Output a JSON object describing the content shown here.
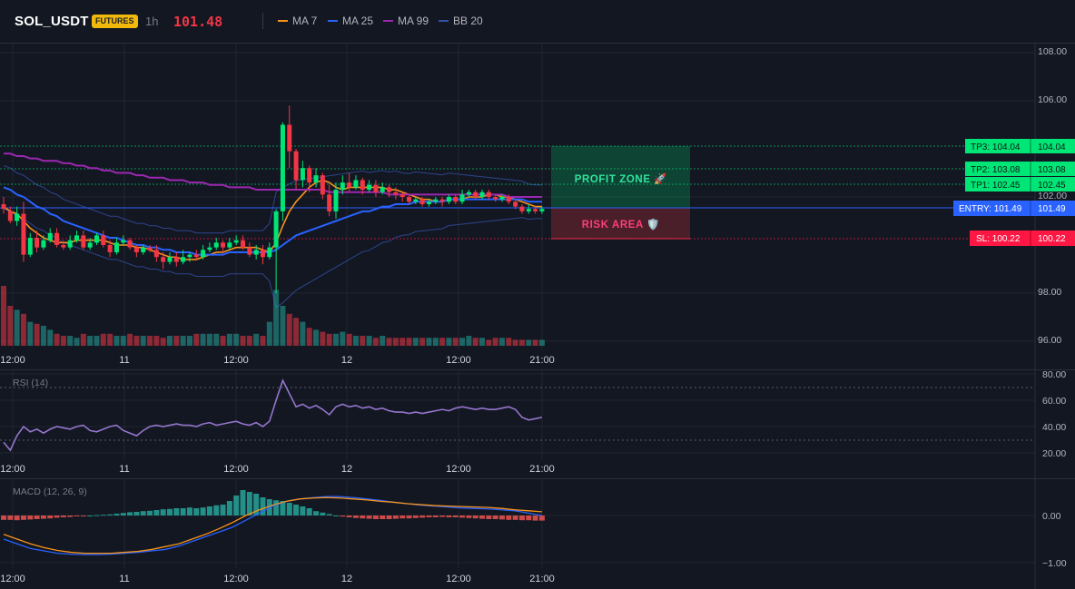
{
  "header": {
    "symbol": "SOL_USDT",
    "badge": "FUTURES",
    "timeframe": "1h",
    "last_price": "101.48",
    "indicators": [
      {
        "label": "MA 7",
        "color": "#f7931a"
      },
      {
        "label": "MA 25",
        "color": "#2962ff"
      },
      {
        "label": "MA 99",
        "color": "#9c27b0"
      },
      {
        "label": "BB 20",
        "color": "#3550a8"
      }
    ]
  },
  "colors": {
    "background": "#131722",
    "up": "#26a69a",
    "up_bright": "#00e676",
    "down": "#f23645",
    "tp": "#00e676",
    "entry": "#2962ff",
    "sl": "#ff1744"
  },
  "x_axis_labels": [
    "12:00",
    "11",
    "12:00",
    "12",
    "12:00",
    "21:00"
  ],
  "price_pane": {
    "y_labels": [
      "108.00",
      "106.00",
      "102.00",
      "98.00",
      "96.00"
    ],
    "profit_zone_label": "PROFIT ZONE 🚀",
    "risk_area_label": "RISK AREA 🛡️",
    "levels": [
      {
        "name": "tp3",
        "tag": "TP3: 104.04",
        "value": "104.04"
      },
      {
        "name": "tp2",
        "tag": "TP2: 103.08",
        "value": "103.08"
      },
      {
        "name": "tp1",
        "tag": "TP1: 102.45",
        "value": "102.45"
      },
      {
        "name": "entry",
        "tag": "ENTRY: 101.49",
        "value": "101.49"
      },
      {
        "name": "sl",
        "tag": "SL: 100.22",
        "value": "100.22"
      }
    ]
  },
  "rsi_pane": {
    "title": "RSI (14)",
    "y_labels": [
      "80.00",
      "60.00",
      "40.00",
      "20.00"
    ]
  },
  "macd_pane": {
    "title": "MACD (12, 26, 9)",
    "y_labels": [
      "0.00",
      "−1.00"
    ]
  },
  "chart_data": {
    "type": "candlestick",
    "price_axis": {
      "min": 96,
      "max": 108
    },
    "candles": [
      [
        101.7,
        101.5,
        102.0,
        101.3
      ],
      [
        101.4,
        101.0,
        101.6,
        100.9
      ],
      [
        101.0,
        101.3,
        101.6,
        100.8
      ],
      [
        101.3,
        99.6,
        101.8,
        99.3
      ],
      [
        99.6,
        100.3,
        100.5,
        99.5
      ],
      [
        100.3,
        99.9,
        100.6,
        99.7
      ],
      [
        99.9,
        100.2,
        100.4,
        99.8
      ],
      [
        100.2,
        100.5,
        100.7,
        100.1
      ],
      [
        100.5,
        100.0,
        100.7,
        99.9
      ],
      [
        100.0,
        99.9,
        100.2,
        99.8
      ],
      [
        99.9,
        100.2,
        100.4,
        99.8
      ],
      [
        100.2,
        100.4,
        100.6,
        100.1
      ],
      [
        100.4,
        99.9,
        100.6,
        99.8
      ],
      [
        99.9,
        100.1,
        100.3,
        99.8
      ],
      [
        100.1,
        100.4,
        100.5,
        100.0
      ],
      [
        100.4,
        100.0,
        100.6,
        99.9
      ],
      [
        100.0,
        99.7,
        100.2,
        99.5
      ],
      [
        99.7,
        100.1,
        100.3,
        99.6
      ],
      [
        100.1,
        100.2,
        100.4,
        100.0
      ],
      [
        100.2,
        99.9,
        100.3,
        99.8
      ],
      [
        99.9,
        99.7,
        100.0,
        99.5
      ],
      [
        99.7,
        99.9,
        100.0,
        99.6
      ],
      [
        99.9,
        99.8,
        100.0,
        99.7
      ],
      [
        99.8,
        99.5,
        100.0,
        99.3
      ],
      [
        99.5,
        99.3,
        99.7,
        99.0
      ],
      [
        99.3,
        99.5,
        99.7,
        99.2
      ],
      [
        99.5,
        99.3,
        99.7,
        99.1
      ],
      [
        99.3,
        99.5,
        99.8,
        99.2
      ],
      [
        99.5,
        99.6,
        99.7,
        99.3
      ],
      [
        99.6,
        99.5,
        99.8,
        99.4
      ],
      [
        99.5,
        99.8,
        100.0,
        99.4
      ],
      [
        99.8,
        99.9,
        100.1,
        99.7
      ],
      [
        99.9,
        100.1,
        100.3,
        99.8
      ],
      [
        100.1,
        99.9,
        100.2,
        99.7
      ],
      [
        99.9,
        100.1,
        100.3,
        99.8
      ],
      [
        100.1,
        100.2,
        100.4,
        100.0
      ],
      [
        100.2,
        99.9,
        100.4,
        99.8
      ],
      [
        99.9,
        99.6,
        100.1,
        99.5
      ],
      [
        99.6,
        99.8,
        100.0,
        99.4
      ],
      [
        99.8,
        99.5,
        100.0,
        99.2
      ],
      [
        99.5,
        99.9,
        100.1,
        99.4
      ],
      [
        99.9,
        101.4,
        101.5,
        98.0
      ],
      [
        101.4,
        105.0,
        105.1,
        101.0
      ],
      [
        105.0,
        103.9,
        105.8,
        103.2
      ],
      [
        103.9,
        102.7,
        104.0,
        102.3
      ],
      [
        102.7,
        103.2,
        103.5,
        102.4
      ],
      [
        103.2,
        102.6,
        103.3,
        102.2
      ],
      [
        102.6,
        102.9,
        103.2,
        102.4
      ],
      [
        102.9,
        102.1,
        103.0,
        101.9
      ],
      [
        102.1,
        101.4,
        102.5,
        101.2
      ],
      [
        101.4,
        102.3,
        102.6,
        101.1
      ],
      [
        102.3,
        102.6,
        102.9,
        102.1
      ],
      [
        102.6,
        102.4,
        103.0,
        102.2
      ],
      [
        102.4,
        102.7,
        102.9,
        102.3
      ],
      [
        102.7,
        102.3,
        102.8,
        102.1
      ],
      [
        102.3,
        102.5,
        102.7,
        102.2
      ],
      [
        102.5,
        102.2,
        102.7,
        102.0
      ],
      [
        102.2,
        102.4,
        102.6,
        102.1
      ],
      [
        102.4,
        102.2,
        102.5,
        102.0
      ],
      [
        102.2,
        102.1,
        102.4,
        101.9
      ],
      [
        102.1,
        102.0,
        102.2,
        101.8
      ],
      [
        102.0,
        101.8,
        102.1,
        101.7
      ],
      [
        101.8,
        101.9,
        102.0,
        101.7
      ],
      [
        101.9,
        101.7,
        102.0,
        101.6
      ],
      [
        101.7,
        101.8,
        101.9,
        101.6
      ],
      [
        101.8,
        101.9,
        102.0,
        101.7
      ],
      [
        101.9,
        101.8,
        102.0,
        101.6
      ],
      [
        101.8,
        102.0,
        102.1,
        101.7
      ],
      [
        102.0,
        101.8,
        102.1,
        101.7
      ],
      [
        101.8,
        102.1,
        102.3,
        101.7
      ],
      [
        102.1,
        102.2,
        102.3,
        102.0
      ],
      [
        102.2,
        102.0,
        102.3,
        101.9
      ],
      [
        102.0,
        102.2,
        102.3,
        101.9
      ],
      [
        102.2,
        102.0,
        102.3,
        101.9
      ],
      [
        102.0,
        101.9,
        102.1,
        101.8
      ],
      [
        101.9,
        102.0,
        102.1,
        101.8
      ],
      [
        102.0,
        101.8,
        102.1,
        101.7
      ],
      [
        101.8,
        101.6,
        101.9,
        101.5
      ],
      [
        101.6,
        101.4,
        101.7,
        101.3
      ],
      [
        101.4,
        101.5,
        101.7,
        101.3
      ],
      [
        101.5,
        101.4,
        101.6,
        101.3
      ],
      [
        101.4,
        101.5,
        101.6,
        101.3
      ]
    ],
    "series": [
      {
        "name": "MA 7",
        "values": [
          101.6,
          101.4,
          101.3,
          101.0,
          100.7,
          100.5,
          100.3,
          100.2,
          100.1,
          100.1,
          100.1,
          100.2,
          100.2,
          100.2,
          100.2,
          100.2,
          100.1,
          100.0,
          100.0,
          100.0,
          99.9,
          99.9,
          99.8,
          99.7,
          99.6,
          99.5,
          99.5,
          99.4,
          99.4,
          99.4,
          99.5,
          99.6,
          99.7,
          99.7,
          99.8,
          99.9,
          99.9,
          99.9,
          99.9,
          99.8,
          99.7,
          100.1,
          100.8,
          101.4,
          101.8,
          102.1,
          102.4,
          102.6,
          102.7,
          102.6,
          102.4,
          102.3,
          102.4,
          102.4,
          102.4,
          102.4,
          102.4,
          102.4,
          102.3,
          102.3,
          102.2,
          102.1,
          102.0,
          101.9,
          101.9,
          101.8,
          101.8,
          101.9,
          101.9,
          101.9,
          102.0,
          102.0,
          102.0,
          102.1,
          102.1,
          102.0,
          102.0,
          101.9,
          101.8,
          101.7,
          101.6,
          101.6
        ]
      },
      {
        "name": "MA 25",
        "values": [
          102.4,
          102.3,
          102.1,
          102.0,
          101.8,
          101.6,
          101.5,
          101.3,
          101.2,
          101.0,
          100.9,
          100.8,
          100.7,
          100.6,
          100.5,
          100.4,
          100.3,
          100.3,
          100.2,
          100.1,
          100.0,
          100.0,
          99.9,
          99.9,
          99.8,
          99.8,
          99.7,
          99.7,
          99.7,
          99.6,
          99.6,
          99.6,
          99.6,
          99.6,
          99.7,
          99.7,
          99.7,
          99.7,
          99.7,
          99.7,
          99.7,
          99.8,
          100.0,
          100.2,
          100.4,
          100.5,
          100.6,
          100.7,
          100.8,
          100.9,
          101.0,
          101.1,
          101.2,
          101.3,
          101.4,
          101.4,
          101.5,
          101.6,
          101.6,
          101.7,
          101.7,
          101.7,
          101.8,
          101.8,
          101.8,
          101.8,
          101.8,
          101.9,
          101.9,
          101.9,
          101.9,
          101.9,
          101.9,
          101.9,
          101.9,
          101.9,
          101.9,
          101.9,
          101.9,
          101.8,
          101.8,
          101.8
        ]
      },
      {
        "name": "MA 99",
        "values": [
          103.8,
          103.8,
          103.7,
          103.7,
          103.6,
          103.6,
          103.5,
          103.5,
          103.5,
          103.4,
          103.4,
          103.3,
          103.3,
          103.2,
          103.2,
          103.1,
          103.1,
          103.0,
          103.0,
          103.0,
          102.9,
          102.9,
          102.8,
          102.8,
          102.8,
          102.7,
          102.7,
          102.7,
          102.6,
          102.6,
          102.6,
          102.5,
          102.5,
          102.5,
          102.4,
          102.4,
          102.4,
          102.4,
          102.3,
          102.3,
          102.3,
          102.3,
          102.3,
          102.3,
          102.3,
          102.3,
          102.3,
          102.3,
          102.3,
          102.2,
          102.2,
          102.2,
          102.2,
          102.2,
          102.2,
          102.2,
          102.2,
          102.2,
          102.1,
          102.1,
          102.1,
          102.1,
          102.1,
          102.1,
          102.1,
          102.1,
          102.1,
          102.1,
          102.1,
          102.1,
          102.1,
          102.1,
          102.1,
          102.1,
          102.1,
          102.1,
          102.0,
          102.0,
          102.0,
          102.0,
          102.0,
          102.0
        ]
      }
    ],
    "volume": [
      3,
      2,
      1.8,
      1.6,
      1.2,
      1.1,
      1.0,
      0.8,
      0.6,
      0.5,
      0.5,
      0.4,
      0.6,
      0.5,
      0.5,
      0.6,
      0.6,
      0.5,
      0.5,
      0.6,
      0.5,
      0.5,
      0.5,
      0.5,
      0.4,
      0.5,
      0.5,
      0.5,
      0.5,
      0.6,
      0.6,
      0.6,
      0.6,
      0.5,
      0.6,
      0.6,
      0.5,
      0.5,
      0.6,
      0.5,
      1.2,
      2.8,
      2.0,
      1.6,
      1.4,
      1.2,
      0.9,
      0.8,
      0.7,
      0.6,
      0.6,
      0.7,
      0.6,
      0.5,
      0.5,
      0.5,
      0.4,
      0.5,
      0.4,
      0.4,
      0.4,
      0.4,
      0.4,
      0.4,
      0.4,
      0.4,
      0.4,
      0.4,
      0.4,
      0.4,
      0.5,
      0.4,
      0.4,
      0.3,
      0.4,
      0.4,
      0.4,
      0.3,
      0.3,
      0.3,
      0.3,
      0.3
    ],
    "rsi": [
      28,
      22,
      33,
      40,
      36,
      38,
      35,
      38,
      40,
      39,
      38,
      40,
      41,
      37,
      36,
      38,
      40,
      41,
      37,
      35,
      33,
      37,
      40,
      41,
      40,
      41,
      42,
      41,
      41,
      40,
      42,
      43,
      41,
      42,
      43,
      44,
      42,
      41,
      43,
      40,
      44,
      60,
      75,
      65,
      55,
      57,
      54,
      56,
      53,
      49,
      55,
      57,
      55,
      56,
      54,
      55,
      53,
      54,
      52,
      51,
      51,
      50,
      51,
      50,
      51,
      52,
      53,
      52,
      54,
      55,
      54,
      53,
      54,
      53,
      53,
      54,
      55,
      53,
      47,
      45,
      46,
      47
    ],
    "macd_hist": [
      -0.12,
      -0.12,
      -0.13,
      -0.12,
      -0.11,
      -0.1,
      -0.09,
      -0.08,
      -0.06,
      -0.05,
      -0.04,
      -0.02,
      -0.01,
      0.0,
      0.01,
      0.02,
      0.03,
      0.05,
      0.07,
      0.09,
      0.1,
      0.12,
      0.13,
      0.15,
      0.17,
      0.18,
      0.2,
      0.2,
      0.22,
      0.2,
      0.22,
      0.25,
      0.28,
      0.3,
      0.4,
      0.55,
      0.7,
      0.65,
      0.6,
      0.5,
      0.45,
      0.42,
      0.4,
      0.35,
      0.3,
      0.25,
      0.2,
      0.12,
      0.08,
      0.04,
      0.0,
      -0.03,
      -0.05,
      -0.07,
      -0.08,
      -0.09,
      -0.1,
      -0.1,
      -0.1,
      -0.09,
      -0.08,
      -0.08,
      -0.07,
      -0.06,
      -0.05,
      -0.05,
      -0.04,
      -0.05,
      -0.05,
      -0.06,
      -0.07,
      -0.08,
      -0.09,
      -0.1,
      -0.1,
      -0.11,
      -0.12,
      -0.12,
      -0.13,
      -0.13,
      -0.14,
      -0.14
    ],
    "macd_line": [
      -0.5,
      -0.6,
      -0.7,
      -0.75,
      -0.8,
      -0.82,
      -0.83,
      -0.83,
      -0.82,
      -0.8,
      -0.78,
      -0.75,
      -0.72,
      -0.65,
      -0.55,
      -0.45,
      -0.35,
      -0.25,
      -0.1,
      0.05,
      0.2,
      0.3,
      0.35,
      0.38,
      0.4,
      0.4,
      0.38,
      0.35,
      0.32,
      0.28,
      0.25,
      0.22,
      0.2,
      0.18,
      0.16,
      0.15,
      0.14,
      0.12,
      0.1,
      0.05,
      0.0
    ],
    "macd_signal": [
      -0.4,
      -0.5,
      -0.6,
      -0.68,
      -0.74,
      -0.78,
      -0.8,
      -0.8,
      -0.8,
      -0.78,
      -0.76,
      -0.72,
      -0.66,
      -0.6,
      -0.5,
      -0.4,
      -0.28,
      -0.15,
      0.0,
      0.12,
      0.22,
      0.3,
      0.35,
      0.37,
      0.38,
      0.37,
      0.35,
      0.33,
      0.3,
      0.28,
      0.25,
      0.23,
      0.21,
      0.2,
      0.19,
      0.18,
      0.17,
      0.15,
      0.12,
      0.1,
      0.08
    ]
  }
}
